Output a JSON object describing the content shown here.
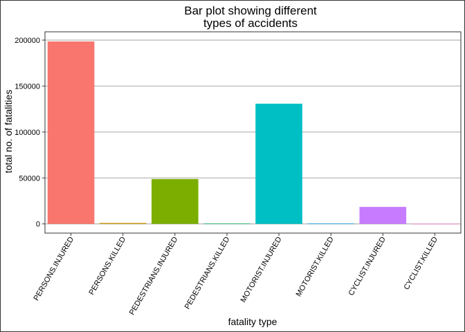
{
  "chart_data": {
    "type": "bar",
    "title": "Bar plot showing different types of accidents",
    "title_lines": [
      "Bar plot showing different",
      "types of accidents"
    ],
    "xlabel": "fatality type",
    "ylabel": "total no. of fatalities",
    "categories": [
      "PERSONS.INJURED",
      "PERSONS.KILLED",
      "PEDESTRIANS.INJURED",
      "PEDESTRIANS.KILLED",
      "MOTORIST.INJURED",
      "MOTORIST.KILLED",
      "CYCLIST.INJURED",
      "CYCLIST.KILLED"
    ],
    "values": [
      198500,
      1000,
      48800,
      500,
      130800,
      500,
      18500,
      80
    ],
    "colors": [
      "#F8766D",
      "#CD9600",
      "#7CAE00",
      "#00BE67",
      "#00BFC4",
      "#00A9FF",
      "#C77CFF",
      "#FF61CC"
    ],
    "yticks": [
      0,
      50000,
      100000,
      150000,
      200000
    ],
    "ylim": [
      -10000,
      209000
    ],
    "grid": "horizontal",
    "legend": "none"
  }
}
